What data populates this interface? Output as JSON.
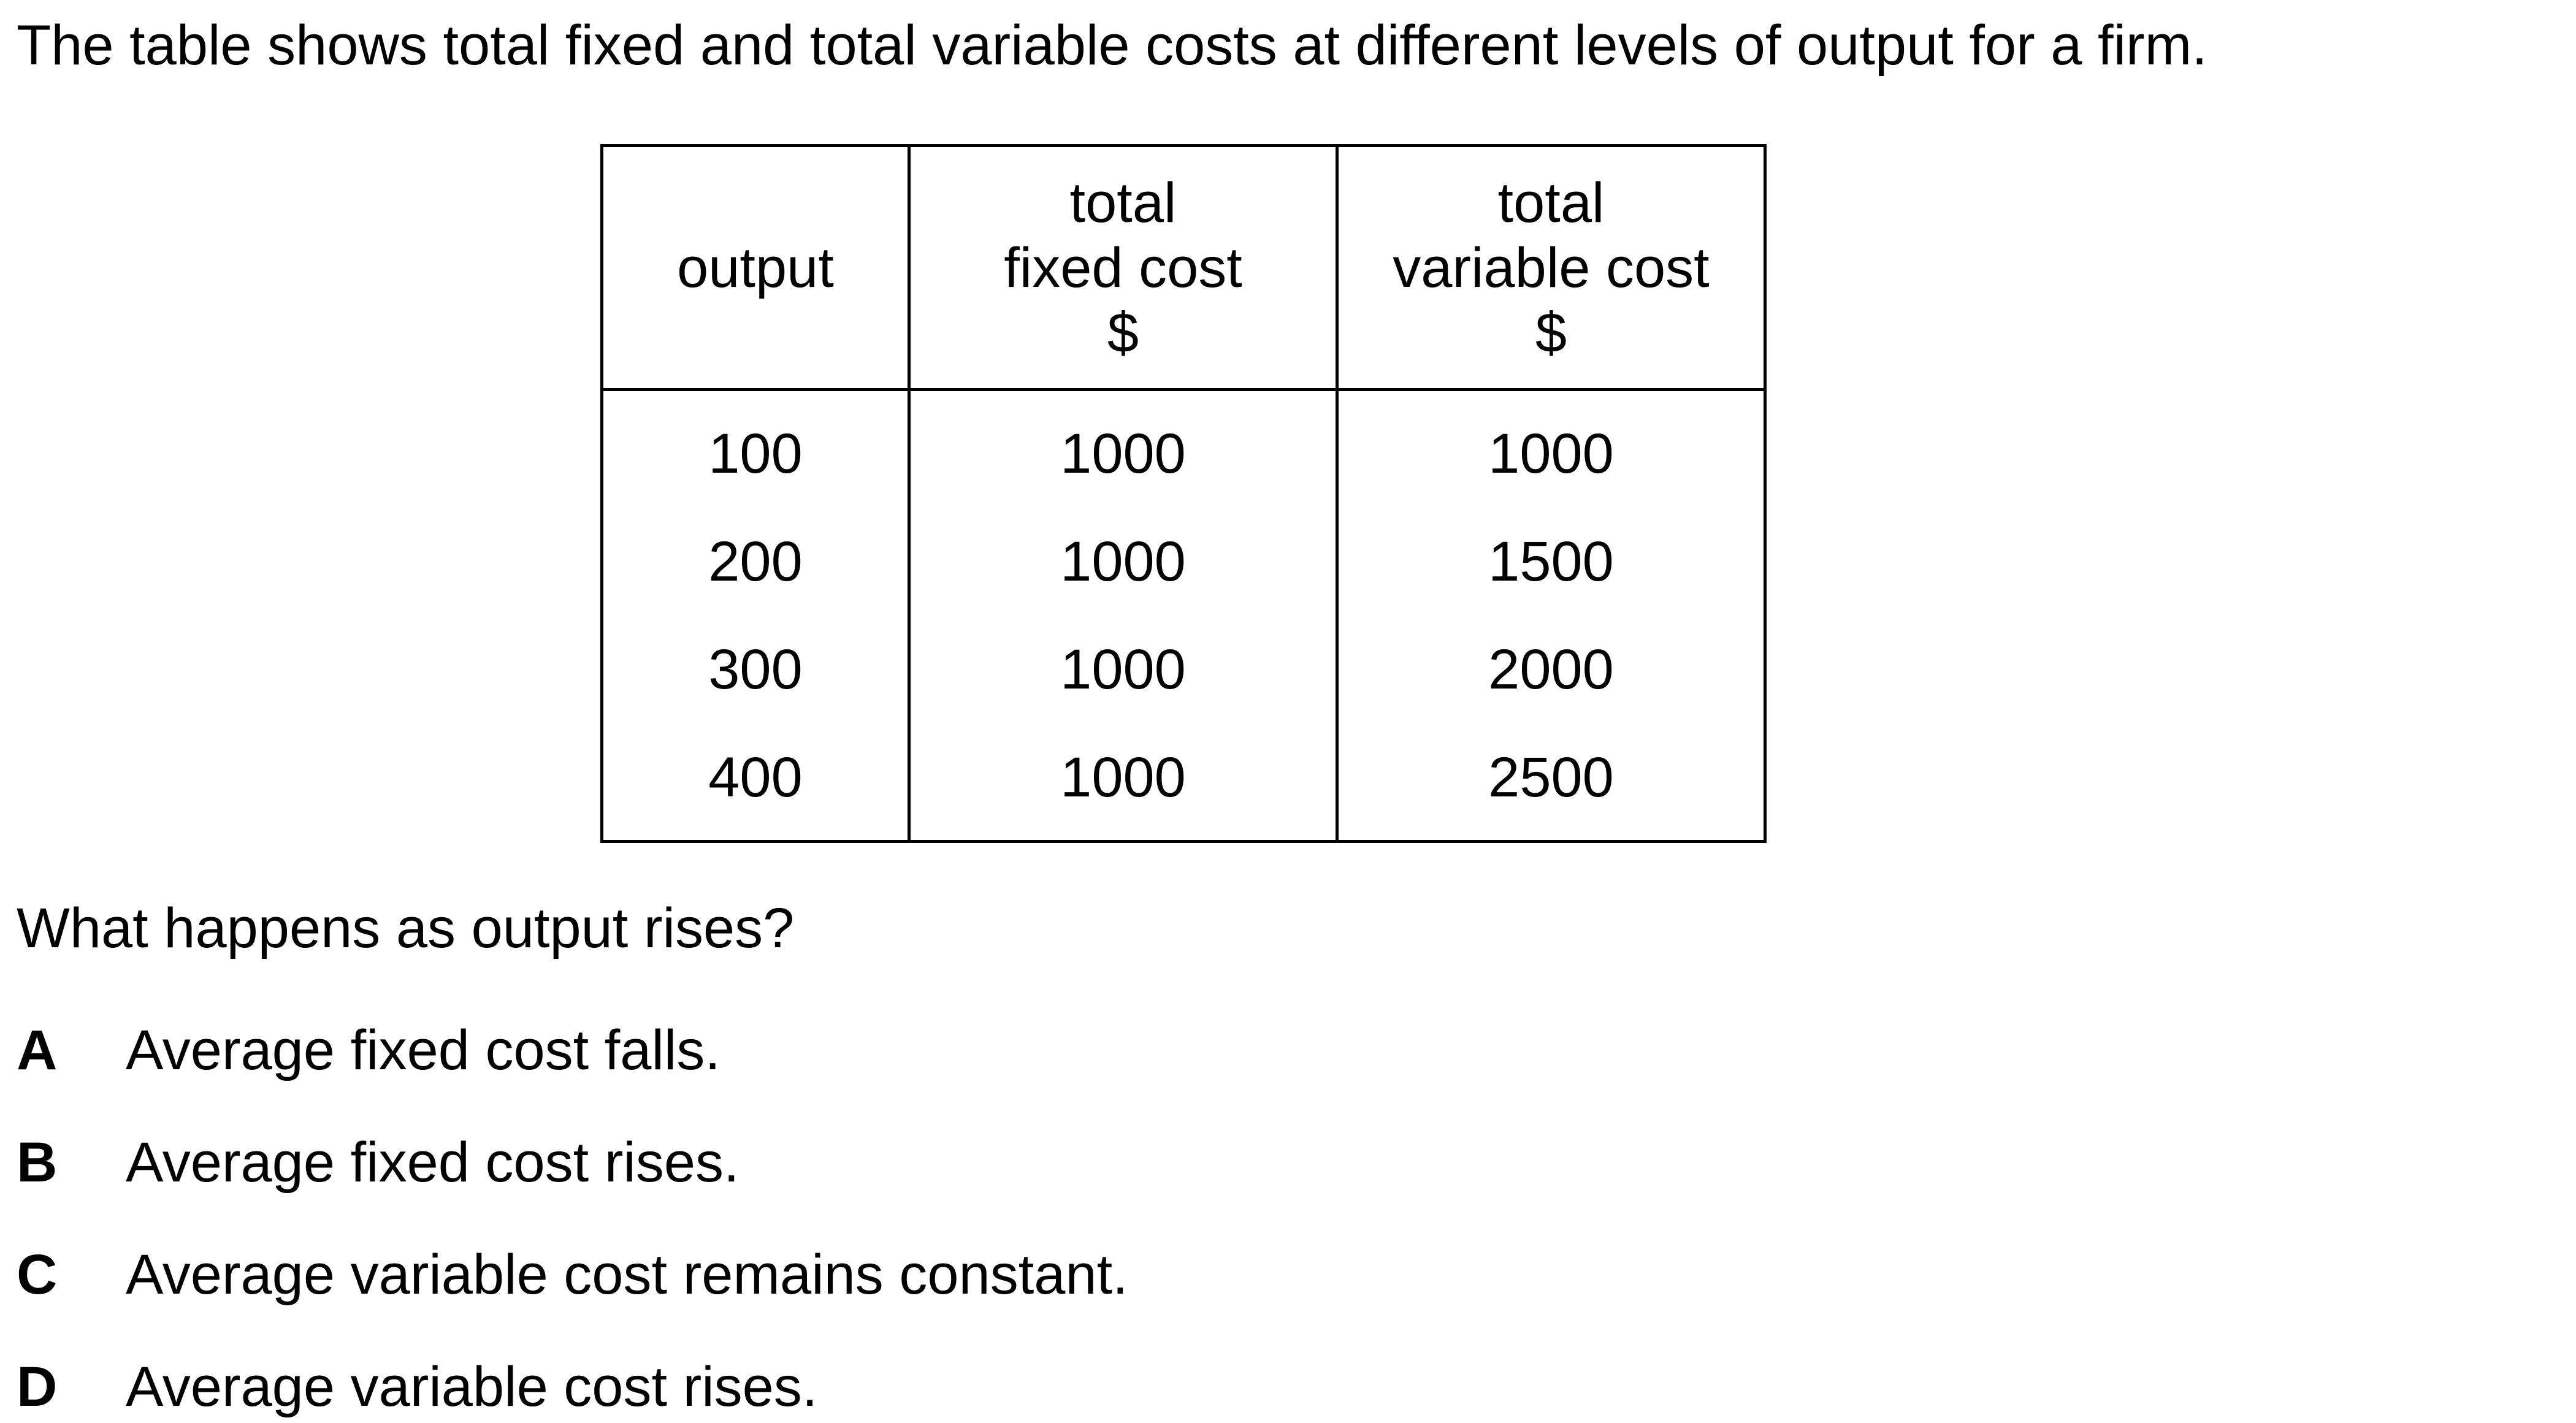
{
  "intro": "The table shows total fixed and total variable costs at different levels of output for a firm.",
  "table": {
    "headers": [
      [
        "output"
      ],
      [
        "total",
        "fixed cost",
        "$"
      ],
      [
        "total",
        "variable cost",
        "$"
      ]
    ],
    "rows": [
      [
        "100",
        "1000",
        "1000"
      ],
      [
        "200",
        "1000",
        "1500"
      ],
      [
        "300",
        "1000",
        "2000"
      ],
      [
        "400",
        "1000",
        "2500"
      ]
    ]
  },
  "question": "What happens as output rises?",
  "options": [
    {
      "letter": "A",
      "text": "Average fixed cost falls."
    },
    {
      "letter": "B",
      "text": "Average fixed cost rises."
    },
    {
      "letter": "C",
      "text": "Average variable cost remains constant."
    },
    {
      "letter": "D",
      "text": "Average variable cost rises."
    }
  ]
}
